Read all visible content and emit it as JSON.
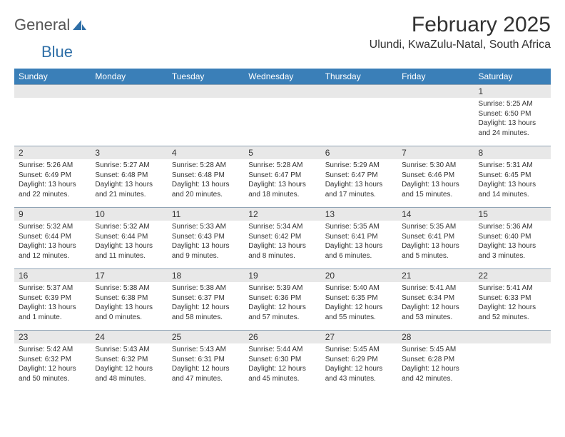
{
  "brand": {
    "word1": "General",
    "word2": "Blue"
  },
  "title": "February 2025",
  "location": "Ulundi, KwaZulu-Natal, South Africa",
  "colors": {
    "header_bg": "#3a7fb8",
    "header_text": "#ffffff",
    "daynum_bg": "#e8e8e8",
    "rule": "#8fa3b5",
    "brand_blue": "#2f6fa7"
  },
  "daynames": [
    "Sunday",
    "Monday",
    "Tuesday",
    "Wednesday",
    "Thursday",
    "Friday",
    "Saturday"
  ],
  "weeks": [
    [
      null,
      null,
      null,
      null,
      null,
      null,
      {
        "n": "1",
        "sr": "5:25 AM",
        "ss": "6:50 PM",
        "dl": "13 hours and 24 minutes."
      }
    ],
    [
      {
        "n": "2",
        "sr": "5:26 AM",
        "ss": "6:49 PM",
        "dl": "13 hours and 22 minutes."
      },
      {
        "n": "3",
        "sr": "5:27 AM",
        "ss": "6:48 PM",
        "dl": "13 hours and 21 minutes."
      },
      {
        "n": "4",
        "sr": "5:28 AM",
        "ss": "6:48 PM",
        "dl": "13 hours and 20 minutes."
      },
      {
        "n": "5",
        "sr": "5:28 AM",
        "ss": "6:47 PM",
        "dl": "13 hours and 18 minutes."
      },
      {
        "n": "6",
        "sr": "5:29 AM",
        "ss": "6:47 PM",
        "dl": "13 hours and 17 minutes."
      },
      {
        "n": "7",
        "sr": "5:30 AM",
        "ss": "6:46 PM",
        "dl": "13 hours and 15 minutes."
      },
      {
        "n": "8",
        "sr": "5:31 AM",
        "ss": "6:45 PM",
        "dl": "13 hours and 14 minutes."
      }
    ],
    [
      {
        "n": "9",
        "sr": "5:32 AM",
        "ss": "6:44 PM",
        "dl": "13 hours and 12 minutes."
      },
      {
        "n": "10",
        "sr": "5:32 AM",
        "ss": "6:44 PM",
        "dl": "13 hours and 11 minutes."
      },
      {
        "n": "11",
        "sr": "5:33 AM",
        "ss": "6:43 PM",
        "dl": "13 hours and 9 minutes."
      },
      {
        "n": "12",
        "sr": "5:34 AM",
        "ss": "6:42 PM",
        "dl": "13 hours and 8 minutes."
      },
      {
        "n": "13",
        "sr": "5:35 AM",
        "ss": "6:41 PM",
        "dl": "13 hours and 6 minutes."
      },
      {
        "n": "14",
        "sr": "5:35 AM",
        "ss": "6:41 PM",
        "dl": "13 hours and 5 minutes."
      },
      {
        "n": "15",
        "sr": "5:36 AM",
        "ss": "6:40 PM",
        "dl": "13 hours and 3 minutes."
      }
    ],
    [
      {
        "n": "16",
        "sr": "5:37 AM",
        "ss": "6:39 PM",
        "dl": "13 hours and 1 minute."
      },
      {
        "n": "17",
        "sr": "5:38 AM",
        "ss": "6:38 PM",
        "dl": "13 hours and 0 minutes."
      },
      {
        "n": "18",
        "sr": "5:38 AM",
        "ss": "6:37 PM",
        "dl": "12 hours and 58 minutes."
      },
      {
        "n": "19",
        "sr": "5:39 AM",
        "ss": "6:36 PM",
        "dl": "12 hours and 57 minutes."
      },
      {
        "n": "20",
        "sr": "5:40 AM",
        "ss": "6:35 PM",
        "dl": "12 hours and 55 minutes."
      },
      {
        "n": "21",
        "sr": "5:41 AM",
        "ss": "6:34 PM",
        "dl": "12 hours and 53 minutes."
      },
      {
        "n": "22",
        "sr": "5:41 AM",
        "ss": "6:33 PM",
        "dl": "12 hours and 52 minutes."
      }
    ],
    [
      {
        "n": "23",
        "sr": "5:42 AM",
        "ss": "6:32 PM",
        "dl": "12 hours and 50 minutes."
      },
      {
        "n": "24",
        "sr": "5:43 AM",
        "ss": "6:32 PM",
        "dl": "12 hours and 48 minutes."
      },
      {
        "n": "25",
        "sr": "5:43 AM",
        "ss": "6:31 PM",
        "dl": "12 hours and 47 minutes."
      },
      {
        "n": "26",
        "sr": "5:44 AM",
        "ss": "6:30 PM",
        "dl": "12 hours and 45 minutes."
      },
      {
        "n": "27",
        "sr": "5:45 AM",
        "ss": "6:29 PM",
        "dl": "12 hours and 43 minutes."
      },
      {
        "n": "28",
        "sr": "5:45 AM",
        "ss": "6:28 PM",
        "dl": "12 hours and 42 minutes."
      },
      null
    ]
  ],
  "labels": {
    "sunrise": "Sunrise:",
    "sunset": "Sunset:",
    "daylight": "Daylight:"
  }
}
